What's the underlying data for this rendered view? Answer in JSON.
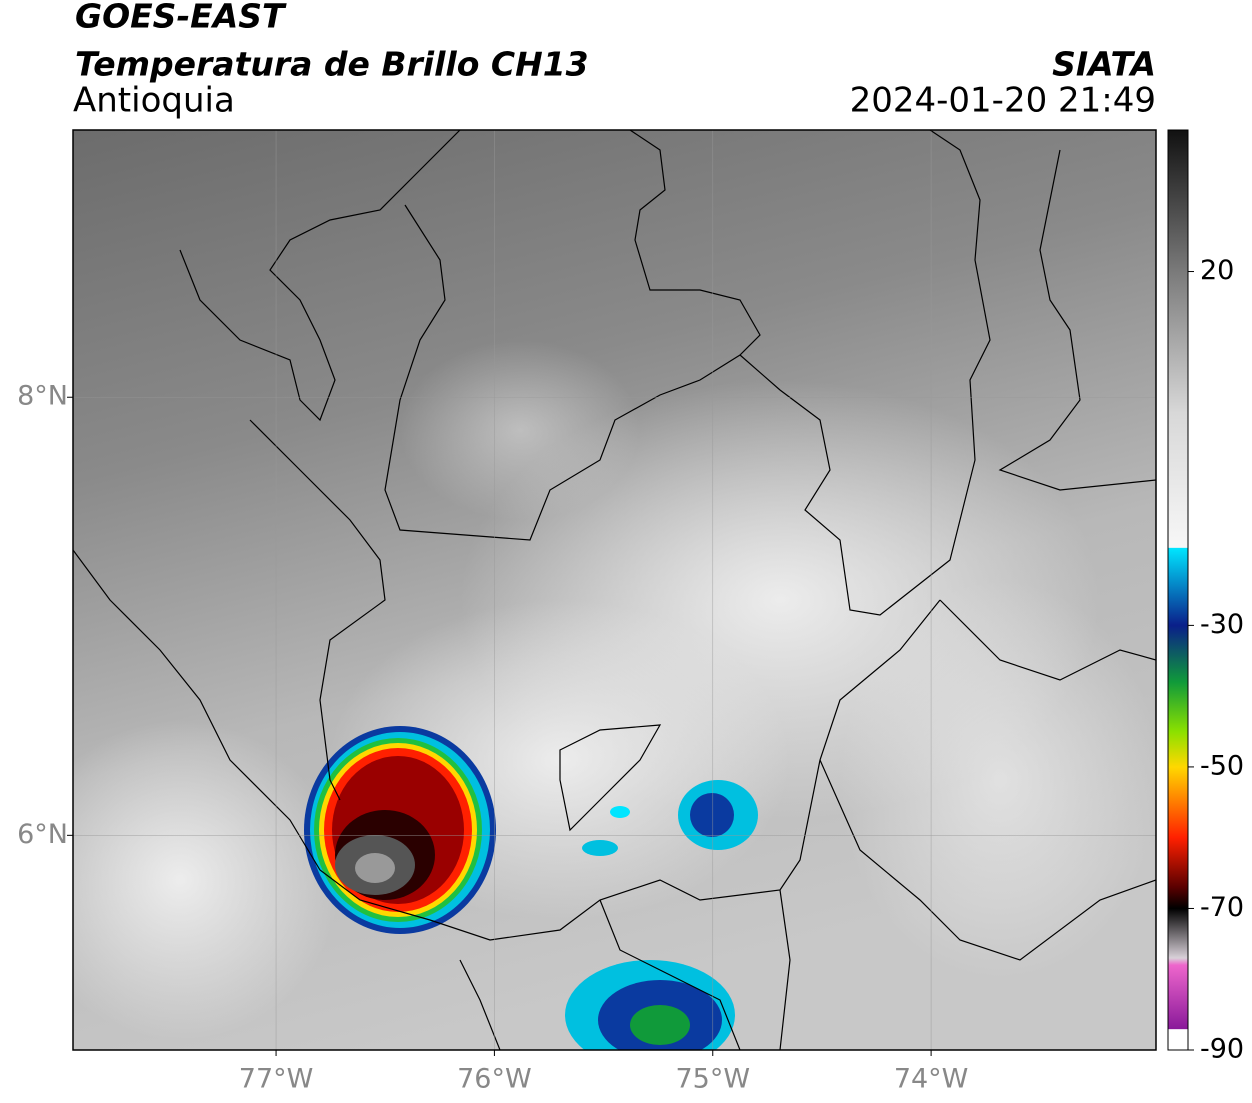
{
  "header": {
    "satellite": "GOES-EAST",
    "product": "Temperatura de Brillo CH13",
    "region": "Antioquia",
    "agency": "SIATA",
    "datetime": "2024-01-20 21:49"
  },
  "map": {
    "xlim": [
      -77.93,
      -72.97
    ],
    "ylim": [
      5.02,
      9.22
    ],
    "xticks": [
      {
        "value": -77,
        "label": "77°W"
      },
      {
        "value": -76,
        "label": "76°W"
      },
      {
        "value": -75,
        "label": "75°W"
      },
      {
        "value": -74,
        "label": "74°W"
      }
    ],
    "yticks": [
      {
        "value": 6,
        "label": "6°N"
      },
      {
        "value": 8,
        "label": "8°N"
      }
    ],
    "grid": true
  },
  "colorbar": {
    "lim": [
      -90,
      40
    ],
    "ticks": [
      20,
      -30,
      -50,
      -70,
      -90
    ],
    "colors": [
      {
        "value": 40,
        "color": "#111111"
      },
      {
        "value": 20,
        "color": "#7a7a7a"
      },
      {
        "value": 0,
        "color": "#d8d8d8"
      },
      {
        "value": -19,
        "color": "#f7f7f7"
      },
      {
        "value": -19.1,
        "color": "#00e5ff"
      },
      {
        "value": -30,
        "color": "#0a1f8a"
      },
      {
        "value": -38,
        "color": "#109a3a"
      },
      {
        "value": -45,
        "color": "#8be000"
      },
      {
        "value": -50,
        "color": "#ffd800"
      },
      {
        "value": -60,
        "color": "#ff2000"
      },
      {
        "value": -67,
        "color": "#5a0000"
      },
      {
        "value": -70,
        "color": "#000000"
      },
      {
        "value": -77,
        "color": "#d8d0d8"
      },
      {
        "value": -78,
        "color": "#ee66cc"
      },
      {
        "value": -87,
        "color": "#8a1a9a"
      },
      {
        "value": -87.1,
        "color": "#ffffff"
      },
      {
        "value": -90,
        "color": "#ffffff"
      }
    ]
  }
}
